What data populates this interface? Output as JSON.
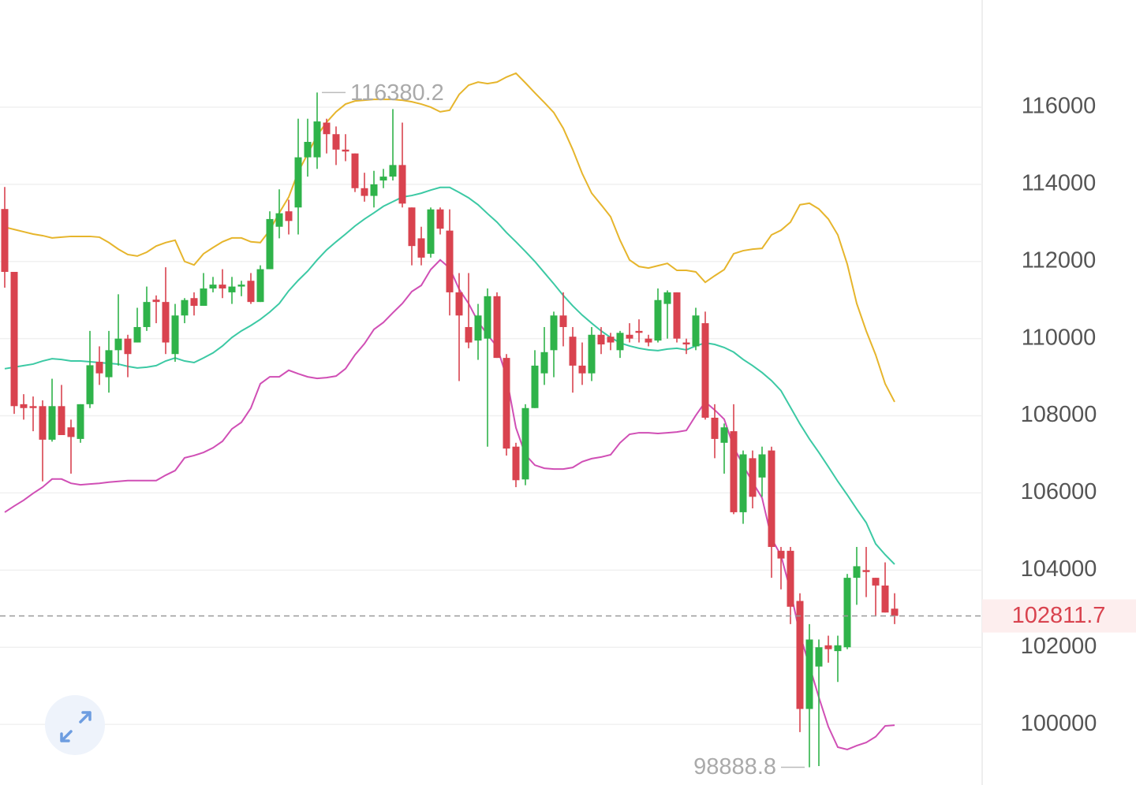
{
  "chart_data": {
    "type": "candlestick",
    "up_color": "#2fb34a",
    "down_color": "#d9434f",
    "ylim": [
      98429,
      118778
    ],
    "yticks": [
      100000,
      102000,
      104000,
      106000,
      108000,
      110000,
      112000,
      114000,
      116000
    ],
    "grid": true,
    "last_price": 102811.7,
    "last_price_color": "#d9434f",
    "annotations": {
      "high": 116380.2,
      "low": 98888.8
    },
    "open": [
      113360,
      111730,
      108300,
      108250,
      108250,
      107380,
      108250,
      107700,
      107400,
      108300,
      109400,
      109000,
      109700,
      110000,
      109900,
      110300,
      111010,
      110950,
      109600,
      110600,
      111050,
      110850,
      111300,
      111400,
      111200,
      111350,
      111500,
      110950,
      111800,
      112900,
      113300,
      113400,
      114700,
      114700,
      115600,
      115300,
      114900,
      114800,
      113900,
      113700,
      114100,
      114200,
      114500,
      113400,
      112600,
      112200,
      113350,
      112800,
      111200,
      110300,
      109950,
      110000,
      111100,
      109500,
      107200,
      106350,
      108200,
      109100,
      109700,
      110600,
      110050,
      109300,
      109100,
      110100,
      110050,
      109700,
      110100,
      110200,
      110000,
      109950,
      110900,
      111200,
      109900,
      109800,
      110400,
      107950,
      107300,
      107600,
      105500,
      106900,
      106400,
      107100,
      104500,
      104500,
      103200,
      100400,
      101500,
      102050,
      101900,
      102000,
      103800,
      104000,
      103800,
      103600,
      103000
    ],
    "high": [
      113930,
      111730,
      108560,
      108500,
      108400,
      108960,
      108800,
      107900,
      108300,
      110200,
      109800,
      110200,
      111150,
      110100,
      110800,
      111350,
      111120,
      111850,
      110900,
      111050,
      111200,
      111700,
      111600,
      111800,
      111600,
      111500,
      111700,
      111900,
      113300,
      113870,
      113600,
      115700,
      115700,
      116380.2,
      115700,
      115500,
      115300,
      114800,
      114300,
      114350,
      114400,
      115950,
      115600,
      113400,
      112900,
      113400,
      113400,
      113350,
      111700,
      111700,
      110900,
      111300,
      111200,
      109600,
      107300,
      108300,
      109700,
      110300,
      110700,
      111200,
      110300,
      109900,
      110300,
      110300,
      110150,
      110200,
      110400,
      110500,
      110100,
      111300,
      111250,
      111200,
      110000,
      110800,
      110700,
      108300,
      107800,
      108300,
      107100,
      107100,
      107200,
      107200,
      104600,
      104600,
      103400,
      102600,
      102200,
      102300,
      102300,
      103900,
      104600,
      104600,
      103800,
      104200,
      103400
    ],
    "low": [
      111320,
      108050,
      107900,
      107600,
      106300,
      107330,
      107500,
      106500,
      107300,
      108200,
      108800,
      108600,
      109300,
      109000,
      109900,
      110200,
      110400,
      109600,
      109400,
      110400,
      110600,
      110850,
      111200,
      111050,
      110900,
      111100,
      110900,
      110950,
      111800,
      112600,
      112700,
      112700,
      114200,
      114400,
      114800,
      114500,
      114600,
      113800,
      113550,
      113400,
      113900,
      114100,
      113400,
      111900,
      111900,
      112100,
      112700,
      110600,
      108900,
      109750,
      109450,
      107200,
      109500,
      106970,
      106150,
      106200,
      108200,
      108800,
      109000,
      109800,
      108600,
      108800,
      108900,
      109600,
      109700,
      109500,
      109900,
      109900,
      109800,
      109900,
      110000,
      109900,
      109600,
      109700,
      107900,
      106900,
      106500,
      105450,
      105200,
      105600,
      105900,
      103800,
      103500,
      102600,
      99800,
      98888.8,
      98920,
      101600,
      101100,
      101950,
      103100,
      103300,
      102800,
      102900,
      102600
    ],
    "close": [
      111730,
      108250,
      108200,
      108200,
      107380,
      108250,
      107500,
      107450,
      108300,
      109310,
      109100,
      109700,
      110000,
      109600,
      110300,
      110950,
      110950,
      109900,
      110600,
      111000,
      110850,
      111300,
      111400,
      111300,
      111350,
      111400,
      110950,
      111800,
      113100,
      113250,
      113050,
      114700,
      115100,
      115630,
      115300,
      114900,
      114850,
      113900,
      113700,
      114000,
      114200,
      114500,
      113500,
      112400,
      112100,
      113350,
      112850,
      111200,
      110600,
      109900,
      110600,
      111100,
      109500,
      107150,
      106330,
      108200,
      109300,
      109650,
      110600,
      110300,
      109300,
      109100,
      110100,
      109850,
      109900,
      110150,
      110000,
      110150,
      109900,
      111000,
      111200,
      110000,
      109850,
      110600,
      107950,
      107400,
      107700,
      105500,
      107000,
      105900,
      107000,
      104600,
      104300,
      103050,
      100400,
      102200,
      102000,
      101950,
      102050,
      103800,
      104100,
      103950,
      103600,
      102900,
      102811.7
    ],
    "overlays": [
      {
        "color": "#e6b52c",
        "values": [
          112890,
          112830,
          112770,
          112710,
          112670,
          112610,
          112630,
          112650,
          112650,
          112650,
          112630,
          112490,
          112320,
          112180,
          112140,
          112240,
          112400,
          112490,
          112550,
          112000,
          111910,
          112200,
          112360,
          112510,
          112610,
          112610,
          112510,
          112490,
          112810,
          113260,
          113670,
          114320,
          114790,
          115260,
          115610,
          115880,
          116080,
          116160,
          116180,
          116200,
          116200,
          116200,
          116180,
          116140,
          116080,
          116000,
          115880,
          115920,
          116330,
          116570,
          116650,
          116610,
          116650,
          116780,
          116880,
          116630,
          116370,
          116120,
          115860,
          115450,
          114900,
          114280,
          113770,
          113470,
          113160,
          112550,
          112040,
          111870,
          111830,
          111890,
          111950,
          111770,
          111770,
          111730,
          111460,
          111630,
          111790,
          112200,
          112280,
          112320,
          112340,
          112690,
          112810,
          113020,
          113470,
          113510,
          113360,
          113100,
          112690,
          111930,
          110910,
          110200,
          109580,
          108830,
          108360
        ]
      },
      {
        "color": "#3cc9a4",
        "values": [
          109220,
          109260,
          109300,
          109340,
          109420,
          109480,
          109460,
          109420,
          109420,
          109400,
          109380,
          109360,
          109340,
          109280,
          109240,
          109260,
          109300,
          109420,
          109500,
          109420,
          109380,
          109500,
          109630,
          109810,
          110030,
          110200,
          110340,
          110500,
          110690,
          110910,
          111240,
          111510,
          111750,
          112040,
          112300,
          112510,
          112710,
          112920,
          113100,
          113260,
          113430,
          113550,
          113670,
          113710,
          113770,
          113850,
          113920,
          113920,
          113790,
          113650,
          113470,
          113240,
          113020,
          112750,
          112510,
          112260,
          112000,
          111710,
          111420,
          111120,
          110850,
          110610,
          110400,
          110200,
          110030,
          109890,
          109810,
          109750,
          109710,
          109690,
          109730,
          109750,
          109710,
          109810,
          109890,
          109850,
          109770,
          109650,
          109460,
          109300,
          109120,
          108910,
          108650,
          108220,
          107790,
          107400,
          107050,
          106680,
          106300,
          105950,
          105580,
          105230,
          104680,
          104400,
          104150
        ]
      },
      {
        "color": "#d04fb5",
        "values": [
          105500,
          105660,
          105810,
          105990,
          106150,
          106360,
          106360,
          106250,
          106210,
          106230,
          106250,
          106280,
          106300,
          106320,
          106320,
          106320,
          106320,
          106460,
          106580,
          106910,
          106970,
          107050,
          107170,
          107340,
          107660,
          107830,
          108200,
          108830,
          109010,
          109010,
          109180,
          109090,
          109010,
          108970,
          108990,
          109030,
          109220,
          109580,
          109870,
          110240,
          110420,
          110670,
          110910,
          111220,
          111380,
          111790,
          112040,
          111830,
          111280,
          110910,
          110440,
          110100,
          109790,
          109010,
          107690,
          106990,
          106720,
          106640,
          106620,
          106620,
          106660,
          106810,
          106890,
          106930,
          106990,
          107300,
          107520,
          107560,
          107560,
          107540,
          107560,
          107580,
          107620,
          108010,
          108360,
          108150,
          107910,
          107190,
          106720,
          106280,
          105870,
          104820,
          104380,
          103460,
          102330,
          101520,
          100700,
          99940,
          99410,
          99350,
          99450,
          99530,
          99680,
          99960,
          99980
        ]
      }
    ]
  }
}
